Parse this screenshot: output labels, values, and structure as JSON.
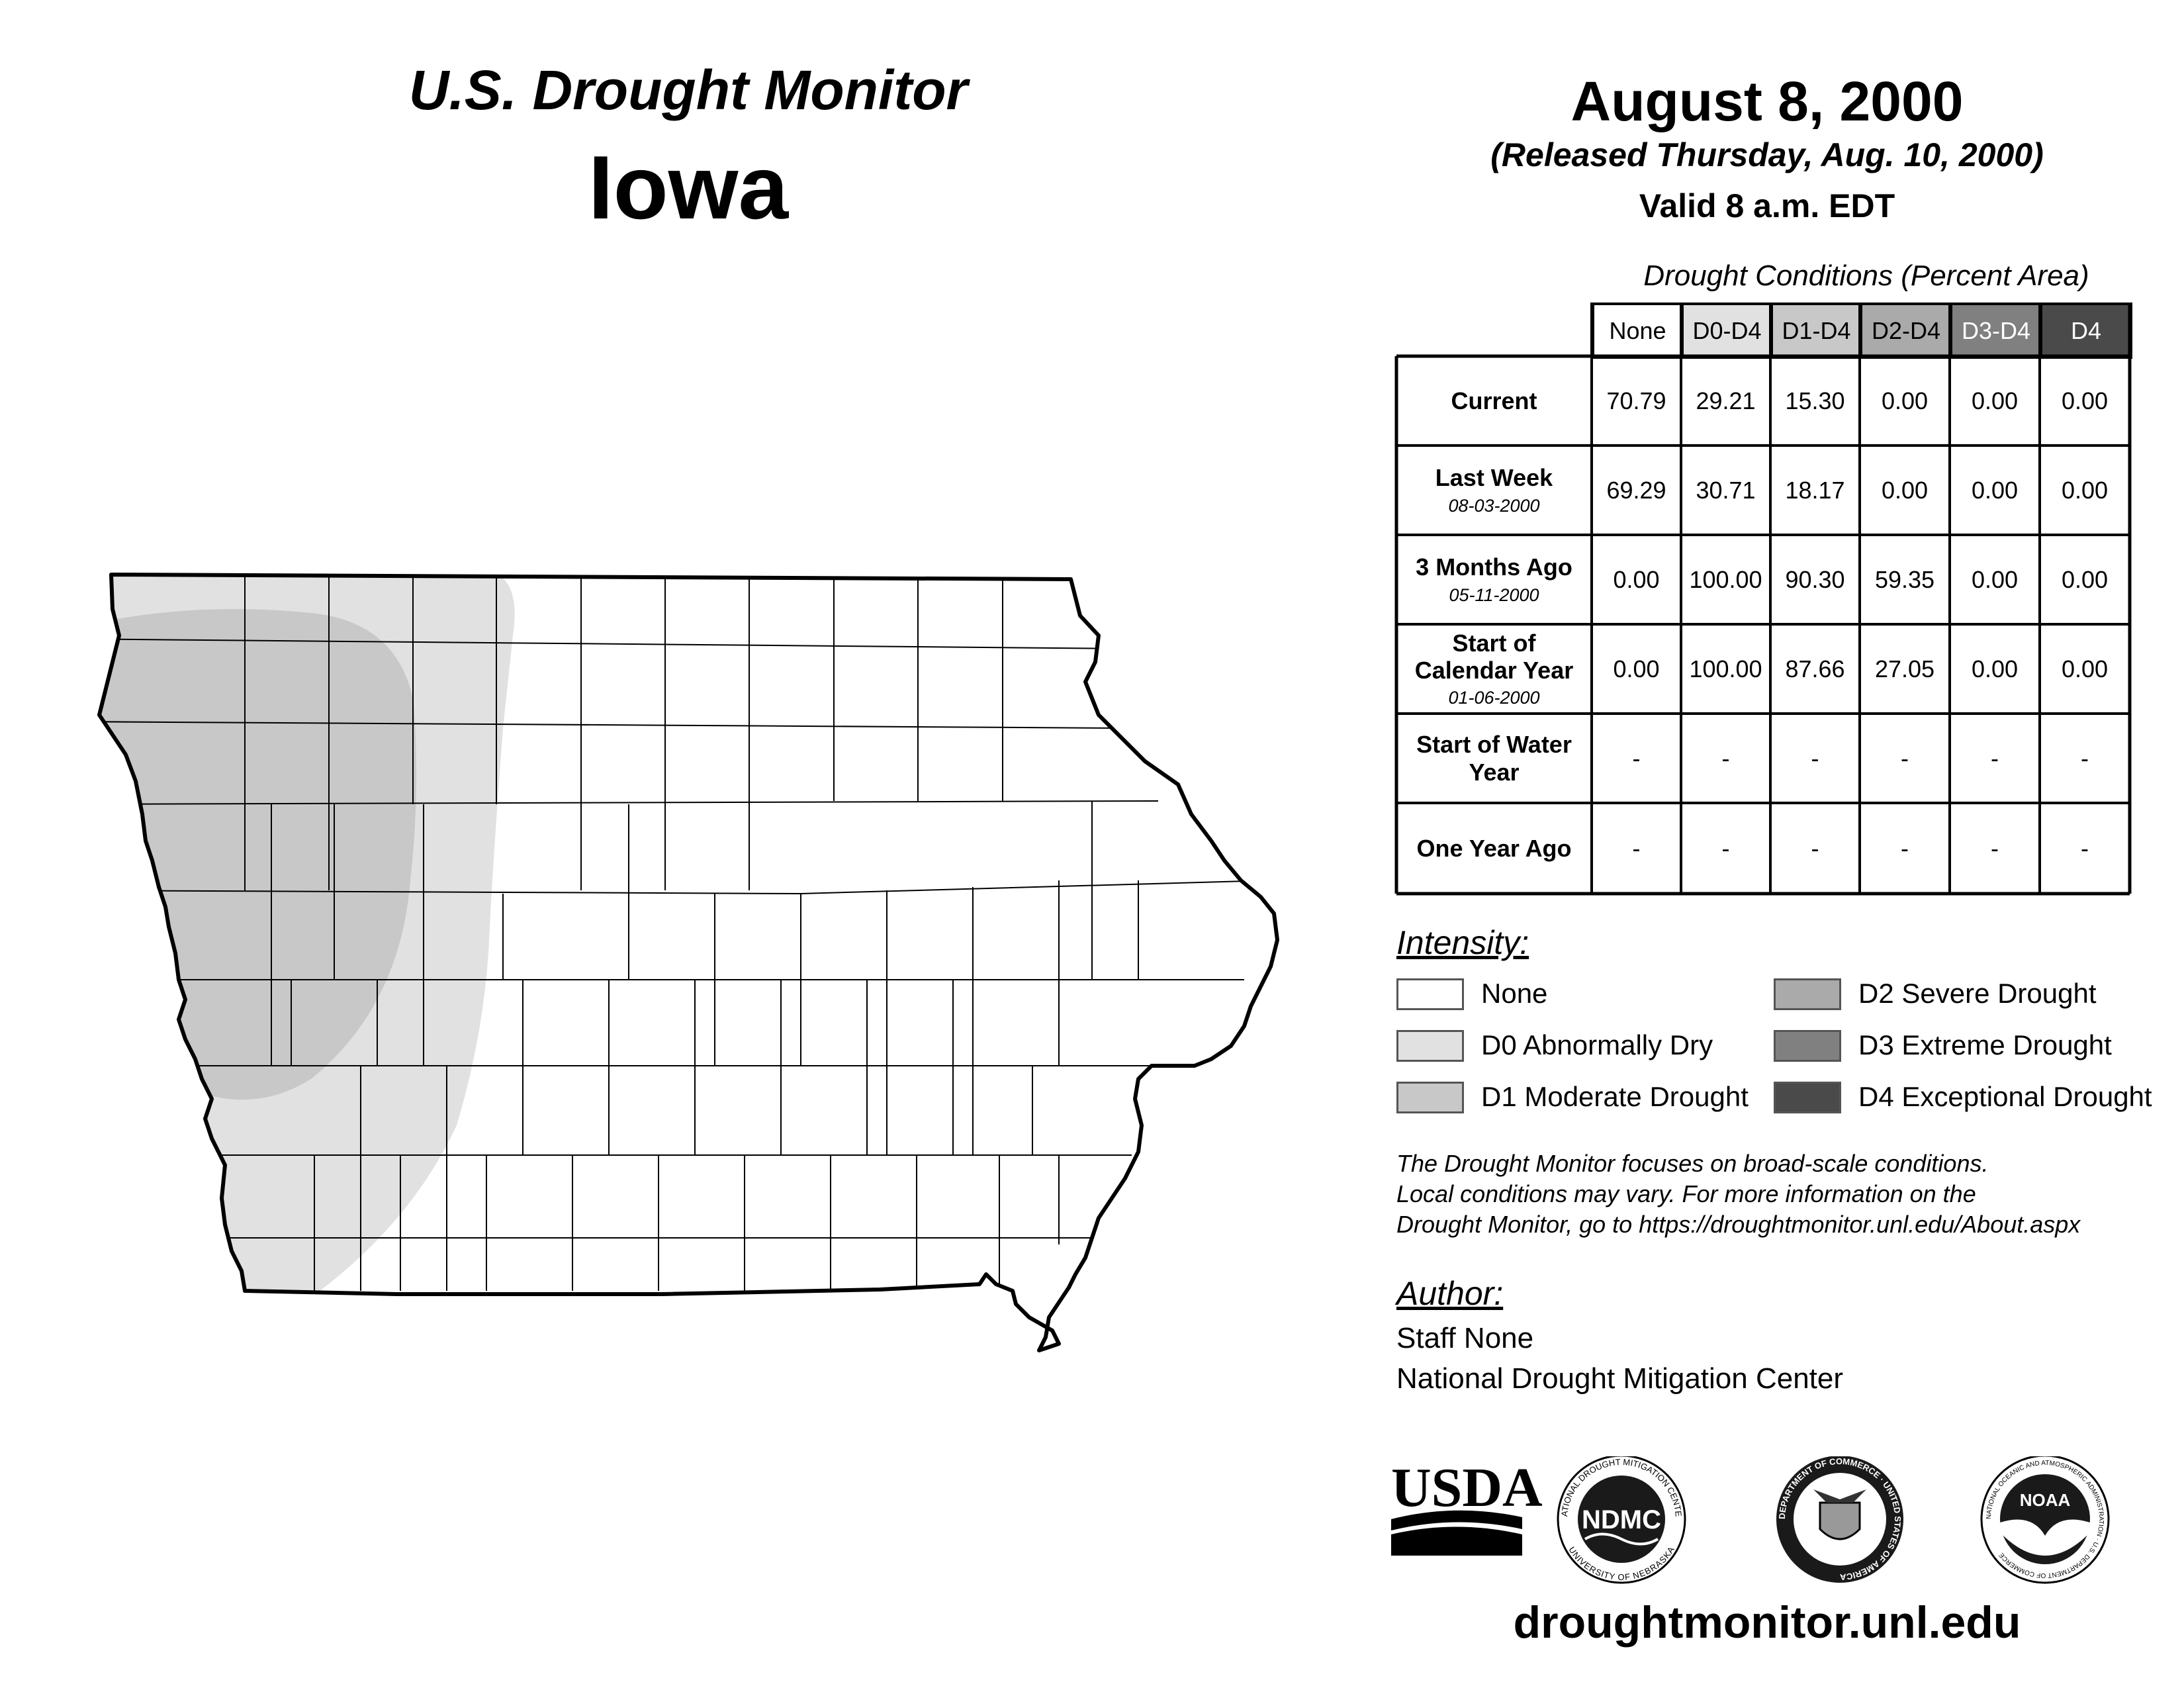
{
  "header": {
    "title": "U.S. Drought Monitor",
    "state": "Iowa",
    "date": "August 8, 2000",
    "released": "(Released Thursday, Aug. 10, 2000)",
    "valid": "Valid 8 a.m. EDT"
  },
  "table": {
    "caption": "Drought Conditions (Percent Area)",
    "columns": [
      "None",
      "D0-D4",
      "D1-D4",
      "D2-D4",
      "D3-D4",
      "D4"
    ],
    "rows": [
      {
        "label": "Current",
        "sub": "",
        "values": [
          "70.79",
          "29.21",
          "15.30",
          "0.00",
          "0.00",
          "0.00"
        ]
      },
      {
        "label": "Last Week",
        "sub": "08-03-2000",
        "values": [
          "69.29",
          "30.71",
          "18.17",
          "0.00",
          "0.00",
          "0.00"
        ]
      },
      {
        "label": "3 Months Ago",
        "sub": "05-11-2000",
        "values": [
          "0.00",
          "100.00",
          "90.30",
          "59.35",
          "0.00",
          "0.00"
        ]
      },
      {
        "label": "Start of Calendar Year",
        "sub": "01-06-2000",
        "values": [
          "0.00",
          "100.00",
          "87.66",
          "27.05",
          "0.00",
          "0.00"
        ]
      },
      {
        "label": "Start of Water Year",
        "sub": "",
        "values": [
          "-",
          "-",
          "-",
          "-",
          "-",
          "-"
        ]
      },
      {
        "label": "One Year Ago",
        "sub": "",
        "values": [
          "-",
          "-",
          "-",
          "-",
          "-",
          "-"
        ]
      }
    ]
  },
  "legend": {
    "title": "Intensity:",
    "items": [
      {
        "label": "None",
        "color": "#ffffff"
      },
      {
        "label": "D0 Abnormally Dry",
        "color": "#e1e1e1"
      },
      {
        "label": "D1 Moderate Drought",
        "color": "#c8c8c8"
      },
      {
        "label": "D2 Severe Drought",
        "color": "#aaaaaa"
      },
      {
        "label": "D3 Extreme Drought",
        "color": "#808080"
      },
      {
        "label": "D4 Exceptional Drought",
        "color": "#4a4a4a"
      }
    ]
  },
  "note": [
    "The Drought Monitor focuses on broad-scale conditions.",
    "Local conditions may vary. For more information on the",
    "Drought Monitor, go to https://droughtmonitor.unl.edu/About.aspx"
  ],
  "author": {
    "heading": "Author:",
    "name": "Staff None",
    "org": "National Drought Mitigation Center"
  },
  "logos": {
    "usda": "USDA",
    "ndmc": "NDMC",
    "ndmc_ring_top": "NATIONAL DROUGHT MITIGATION CENTER",
    "ndmc_ring_bottom": "UNIVERSITY OF NEBRASKA",
    "doc_ring": "DEPARTMENT OF COMMERCE · UNITED STATES OF AMERICA",
    "noaa": "NOAA",
    "noaa_ring": "NATIONAL OCEANIC AND ATMOSPHERIC ADMINISTRATION · U.S. DEPARTMENT OF COMMERCE"
  },
  "footer_url": "droughtmonitor.unl.edu"
}
